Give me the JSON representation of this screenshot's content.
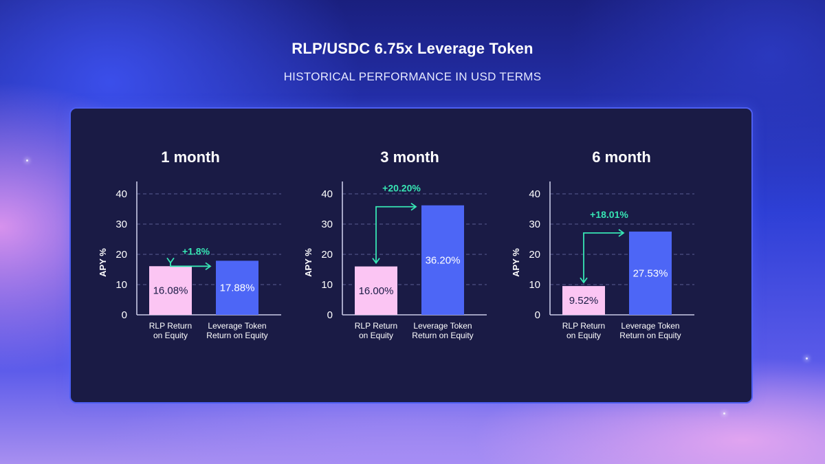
{
  "title": "RLP/USDC 6.75x Leverage Token",
  "subtitle": "HISTORICAL PERFORMANCE IN USD TERMS",
  "colors": {
    "rlp_bar": "#fbc5f3",
    "leverage_bar": "#4d66f6",
    "delta": "#37e6b4",
    "panel_bg": "#1a1b45",
    "panel_border": "#4d5ef2"
  },
  "chart_data": [
    {
      "type": "bar",
      "title": "1 month",
      "ylabel": "APY %",
      "ylim": [
        0,
        40
      ],
      "yticks": [
        0,
        10,
        20,
        30,
        40
      ],
      "grid": true,
      "categories": [
        [
          "RLP Return",
          "on Equity"
        ],
        [
          "Leverage Token",
          "Return on Equity"
        ]
      ],
      "values": [
        16.08,
        17.88
      ],
      "data_labels": [
        "16.08%",
        "17.88%"
      ],
      "annotation": "+1.8%"
    },
    {
      "type": "bar",
      "title": "3 month",
      "ylabel": "APY %",
      "ylim": [
        0,
        40
      ],
      "yticks": [
        0,
        10,
        20,
        30,
        40
      ],
      "grid": true,
      "categories": [
        [
          "RLP Return",
          "on Equity"
        ],
        [
          "Leverage Token",
          "Return on Equity"
        ]
      ],
      "values": [
        16.0,
        36.2
      ],
      "data_labels": [
        "16.00%",
        "36.20%"
      ],
      "annotation": "+20.20%"
    },
    {
      "type": "bar",
      "title": "6 month",
      "ylabel": "APY %",
      "ylim": [
        0,
        40
      ],
      "yticks": [
        0,
        10,
        20,
        30,
        40
      ],
      "grid": true,
      "categories": [
        [
          "RLP Return",
          "on Equity"
        ],
        [
          "Leverage Token",
          "Return on Equity"
        ]
      ],
      "values": [
        9.52,
        27.53
      ],
      "data_labels": [
        "9.52%",
        "27.53%"
      ],
      "annotation": "+18.01%"
    }
  ]
}
